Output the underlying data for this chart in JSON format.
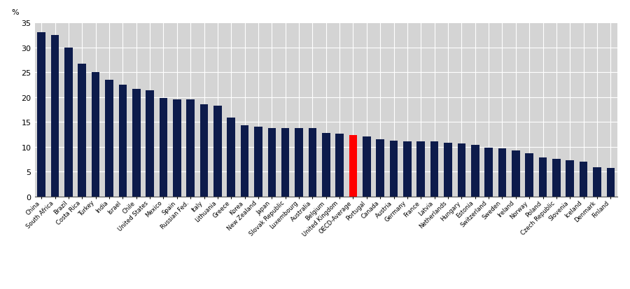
{
  "categories": [
    "China",
    "South Africa",
    "Brazil",
    "Costa Rica",
    "Turkey",
    "India",
    "Israel",
    "Chile",
    "United States",
    "Mexico",
    "Spain",
    "Russian Fed.",
    "Italy",
    "Lithuania",
    "Greece",
    "Korea",
    "New Zealand",
    "Japan",
    "Slovak Republic",
    "Luxembourg",
    "Australia",
    "Belgium",
    "United Kingdom",
    "OECD-Average",
    "Portugal",
    "Canada",
    "Austria",
    "Germany",
    "France",
    "Latvia",
    "Netherlands",
    "Hungary",
    "Estonia",
    "Switzerland",
    "Sweden",
    "Ireland",
    "Norway",
    "Poland",
    "Czech Republic",
    "Slovenia",
    "Iceland",
    "Denmark",
    "Finland"
  ],
  "values": [
    33.0,
    32.5,
    30.0,
    26.7,
    25.0,
    23.5,
    22.5,
    21.7,
    21.3,
    19.8,
    19.5,
    19.5,
    18.5,
    18.3,
    15.8,
    14.3,
    14.0,
    13.8,
    13.7,
    13.7,
    13.7,
    12.8,
    12.6,
    12.3,
    12.1,
    11.5,
    11.2,
    11.1,
    11.0,
    11.0,
    10.8,
    10.6,
    10.3,
    9.8,
    9.6,
    9.2,
    8.7,
    7.8,
    7.5,
    7.3,
    7.0,
    5.8,
    5.7
  ],
  "highlight_index": 23,
  "bar_color": "#0d1b4b",
  "highlight_color": "#ff0000",
  "background_color": "#d4d4d4",
  "outer_background": "#ffffff",
  "ylabel": "%",
  "ylim": [
    0,
    35
  ],
  "yticks": [
    0,
    5,
    10,
    15,
    20,
    25,
    30,
    35
  ]
}
